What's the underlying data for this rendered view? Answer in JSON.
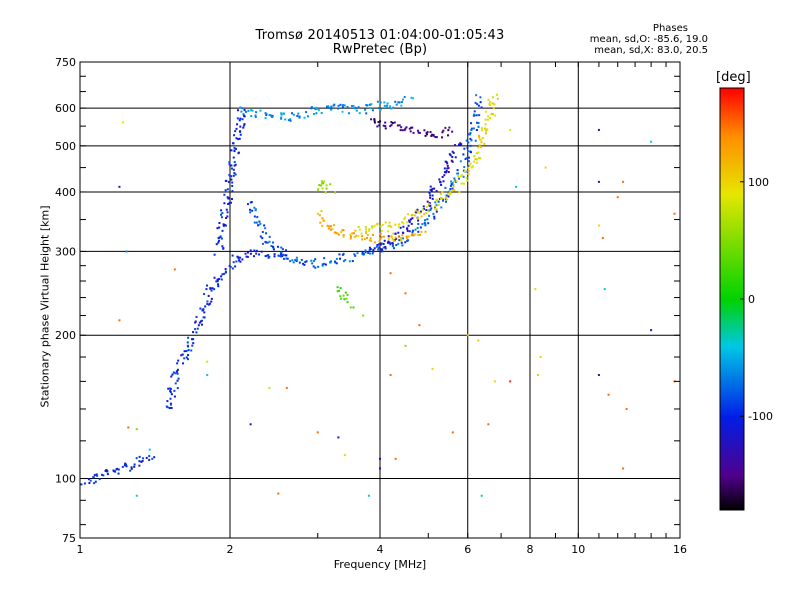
{
  "colors": {
    "axis": "#000000",
    "grid": "#000000"
  },
  "chart_data": {
    "type": "scatter",
    "title": "Tromsø 20140513 01:04:00-01:05:43",
    "subtitle": "RwPretec (Bp)",
    "xlabel": "Frequency [MHz]",
    "ylabel": "Stationary phase Virtual Height [km]",
    "xscale": "log",
    "yscale": "log",
    "xlim": [
      1,
      16
    ],
    "ylim": [
      75,
      750
    ],
    "xticks": [
      1,
      2,
      4,
      6,
      8,
      10,
      16
    ],
    "xtick_labels": [
      "1",
      "2",
      "4",
      "6",
      "8",
      "10",
      "16"
    ],
    "yticks": [
      75,
      100,
      200,
      300,
      400,
      500,
      600,
      750
    ],
    "ytick_labels": [
      "75",
      "100",
      "200",
      "300",
      "400",
      "500",
      "600",
      "750"
    ],
    "grid": true,
    "legend": {
      "title": "Phases",
      "o_line": "mean, sd,O: -85.6, 19.0",
      "x_line": "mean, sd,X: 83.0, 20.5"
    },
    "colorbar": {
      "label": "[deg]",
      "range": [
        -180,
        180
      ],
      "ticks": [
        -100,
        0,
        100
      ],
      "tick_labels": [
        "-100",
        "0",
        "100"
      ]
    },
    "traces": [
      {
        "phase": -100,
        "points": [
          [
            1.0,
            98
          ],
          [
            1.05,
            99
          ],
          [
            1.1,
            101
          ],
          [
            1.15,
            104
          ],
          [
            1.2,
            104
          ],
          [
            1.3,
            108
          ],
          [
            1.4,
            113
          ]
        ]
      },
      {
        "phase": -100,
        "points": [
          [
            1.5,
            140
          ],
          [
            1.55,
            160
          ],
          [
            1.6,
            175
          ],
          [
            1.65,
            190
          ],
          [
            1.7,
            205
          ],
          [
            1.75,
            220
          ],
          [
            1.8,
            240
          ],
          [
            1.85,
            255
          ],
          [
            1.9,
            260
          ],
          [
            1.95,
            270
          ],
          [
            2.0,
            280
          ],
          [
            2.05,
            288
          ],
          [
            2.1,
            292
          ],
          [
            2.2,
            295
          ],
          [
            2.3,
            297
          ],
          [
            2.4,
            297
          ],
          [
            2.6,
            295
          ]
        ]
      },
      {
        "phase": -100,
        "points": [
          [
            1.9,
            300
          ],
          [
            1.92,
            330
          ],
          [
            1.95,
            360
          ],
          [
            1.98,
            390
          ],
          [
            2.0,
            420
          ],
          [
            2.02,
            450
          ],
          [
            2.05,
            480
          ],
          [
            2.08,
            520
          ],
          [
            2.1,
            560
          ],
          [
            2.12,
            600
          ]
        ]
      },
      {
        "phase": -80,
        "points": [
          [
            2.2,
            380
          ],
          [
            2.25,
            350
          ],
          [
            2.35,
            320
          ],
          [
            2.5,
            300
          ],
          [
            2.6,
            290
          ],
          [
            2.8,
            285
          ],
          [
            3.0,
            283
          ],
          [
            3.2,
            287
          ],
          [
            3.5,
            292
          ],
          [
            3.8,
            298
          ],
          [
            4.0,
            305
          ],
          [
            4.3,
            312
          ],
          [
            4.6,
            325
          ],
          [
            4.9,
            345
          ],
          [
            5.2,
            370
          ],
          [
            5.5,
            400
          ],
          [
            5.8,
            440
          ],
          [
            6.0,
            480
          ],
          [
            6.15,
            530
          ],
          [
            6.25,
            580
          ],
          [
            6.3,
            630
          ]
        ]
      },
      {
        "phase": -120,
        "points": [
          [
            3.8,
            300
          ],
          [
            4.1,
            310
          ],
          [
            4.4,
            330
          ],
          [
            4.7,
            355
          ],
          [
            5.0,
            385
          ],
          [
            5.2,
            410
          ],
          [
            5.4,
            445
          ],
          [
            5.6,
            480
          ],
          [
            5.8,
            515
          ]
        ]
      },
      {
        "phase": -60,
        "points": [
          [
            2.1,
            590
          ],
          [
            2.3,
            585
          ],
          [
            2.5,
            580
          ],
          [
            2.7,
            575
          ],
          [
            2.9,
            590
          ],
          [
            3.1,
            600
          ],
          [
            3.3,
            598
          ],
          [
            3.6,
            595
          ],
          [
            3.8,
            600
          ],
          [
            4.0,
            605
          ],
          [
            4.3,
            615
          ],
          [
            4.6,
            630
          ]
        ]
      },
      {
        "phase": -150,
        "points": [
          [
            3.8,
            560
          ],
          [
            4.1,
            555
          ],
          [
            4.4,
            545
          ],
          [
            4.7,
            535
          ],
          [
            5.0,
            528
          ],
          [
            5.3,
            530
          ],
          [
            5.6,
            540
          ]
        ]
      },
      {
        "phase": 120,
        "points": [
          [
            3.0,
            360
          ],
          [
            3.1,
            345
          ],
          [
            3.2,
            335
          ],
          [
            3.3,
            330
          ],
          [
            3.5,
            325
          ],
          [
            3.7,
            322
          ],
          [
            4.0,
            320
          ],
          [
            4.3,
            320
          ],
          [
            4.6,
            322
          ],
          [
            4.9,
            330
          ]
        ]
      },
      {
        "phase": 95,
        "points": [
          [
            3.6,
            330
          ],
          [
            3.9,
            335
          ],
          [
            4.2,
            340
          ],
          [
            4.5,
            350
          ],
          [
            4.8,
            360
          ],
          [
            5.1,
            375
          ],
          [
            5.4,
            390
          ],
          [
            5.7,
            410
          ],
          [
            6.0,
            440
          ],
          [
            6.3,
            480
          ],
          [
            6.5,
            540
          ],
          [
            6.7,
            600
          ],
          [
            6.8,
            640
          ]
        ]
      },
      {
        "phase": 50,
        "points": [
          [
            3.0,
            410
          ],
          [
            3.1,
            420
          ],
          [
            3.2,
            400
          ]
        ]
      },
      {
        "phase": 30,
        "points": [
          [
            3.3,
            250
          ],
          [
            3.4,
            240
          ],
          [
            3.5,
            230
          ]
        ]
      }
    ],
    "scatter": [
      {
        "x": 1.22,
        "y": 560,
        "phase": 90
      },
      {
        "x": 1.2,
        "y": 410,
        "phase": -120
      },
      {
        "x": 1.24,
        "y": 300,
        "phase": -60
      },
      {
        "x": 1.2,
        "y": 215,
        "phase": 150
      },
      {
        "x": 1.25,
        "y": 128,
        "phase": 150
      },
      {
        "x": 1.3,
        "y": 127,
        "phase": 50
      },
      {
        "x": 1.38,
        "y": 115,
        "phase": -40
      },
      {
        "x": 1.3,
        "y": 92,
        "phase": -40
      },
      {
        "x": 1.55,
        "y": 275,
        "phase": 150
      },
      {
        "x": 1.8,
        "y": 176,
        "phase": 80
      },
      {
        "x": 1.8,
        "y": 165,
        "phase": -40
      },
      {
        "x": 2.2,
        "y": 130,
        "phase": -130
      },
      {
        "x": 2.4,
        "y": 155,
        "phase": 80
      },
      {
        "x": 2.5,
        "y": 93,
        "phase": 150
      },
      {
        "x": 2.6,
        "y": 155,
        "phase": 150
      },
      {
        "x": 3.0,
        "y": 125,
        "phase": 150
      },
      {
        "x": 3.3,
        "y": 122,
        "phase": -120
      },
      {
        "x": 3.4,
        "y": 112,
        "phase": 100
      },
      {
        "x": 3.8,
        "y": 92,
        "phase": -40
      },
      {
        "x": 4.0,
        "y": 110,
        "phase": -120
      },
      {
        "x": 4.0,
        "y": 105,
        "phase": -120
      },
      {
        "x": 4.2,
        "y": 165,
        "phase": 150
      },
      {
        "x": 4.3,
        "y": 110,
        "phase": 150
      },
      {
        "x": 4.5,
        "y": 190,
        "phase": 50
      },
      {
        "x": 4.8,
        "y": 210,
        "phase": 150
      },
      {
        "x": 5.1,
        "y": 170,
        "phase": 100
      },
      {
        "x": 5.6,
        "y": 125,
        "phase": 150
      },
      {
        "x": 6.0,
        "y": 200,
        "phase": 110
      },
      {
        "x": 6.3,
        "y": 195,
        "phase": 110
      },
      {
        "x": 6.4,
        "y": 92,
        "phase": -30
      },
      {
        "x": 6.6,
        "y": 130,
        "phase": 150
      },
      {
        "x": 6.8,
        "y": 160,
        "phase": 100
      },
      {
        "x": 7.3,
        "y": 160,
        "phase": 170
      },
      {
        "x": 7.3,
        "y": 540,
        "phase": 90
      },
      {
        "x": 7.5,
        "y": 410,
        "phase": -40
      },
      {
        "x": 8.2,
        "y": 250,
        "phase": 100
      },
      {
        "x": 8.3,
        "y": 165,
        "phase": 100
      },
      {
        "x": 8.4,
        "y": 180,
        "phase": 100
      },
      {
        "x": 8.6,
        "y": 450,
        "phase": 100
      },
      {
        "x": 11.0,
        "y": 540,
        "phase": -120
      },
      {
        "x": 11.0,
        "y": 340,
        "phase": 100
      },
      {
        "x": 11.2,
        "y": 320,
        "phase": 150
      },
      {
        "x": 11.0,
        "y": 420,
        "phase": -120
      },
      {
        "x": 11.3,
        "y": 250,
        "phase": -40
      },
      {
        "x": 11.0,
        "y": 165,
        "phase": -120
      },
      {
        "x": 11.5,
        "y": 150,
        "phase": 150
      },
      {
        "x": 12.5,
        "y": 140,
        "phase": 150
      },
      {
        "x": 12.3,
        "y": 105,
        "phase": 150
      },
      {
        "x": 12.3,
        "y": 420,
        "phase": 150
      },
      {
        "x": 12.0,
        "y": 390,
        "phase": 150
      },
      {
        "x": 14.0,
        "y": 510,
        "phase": -40
      },
      {
        "x": 14.0,
        "y": 205,
        "phase": -120
      },
      {
        "x": 15.6,
        "y": 160,
        "phase": 150
      },
      {
        "x": 15.6,
        "y": 360,
        "phase": 150
      },
      {
        "x": 4.5,
        "y": 245,
        "phase": 150
      },
      {
        "x": 4.2,
        "y": 270,
        "phase": 150
      },
      {
        "x": 3.7,
        "y": 220,
        "phase": 50
      }
    ]
  }
}
